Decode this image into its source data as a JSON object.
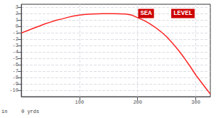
{
  "chart_data": {
    "type": "line",
    "x": [
      0,
      10,
      20,
      30,
      40,
      50,
      60,
      70,
      80,
      90,
      100,
      110,
      120,
      130,
      140,
      150,
      160,
      170,
      180,
      190,
      200,
      210,
      220,
      230,
      240,
      250,
      260,
      270,
      280,
      290,
      300,
      310,
      320,
      325
    ],
    "values": [
      -1.0,
      -0.65,
      -0.3,
      0.05,
      0.4,
      0.7,
      1.0,
      1.2,
      1.45,
      1.65,
      1.8,
      1.9,
      1.97,
      2.0,
      2.02,
      2.03,
      2.02,
      2.0,
      1.97,
      1.8,
      1.4,
      1.0,
      0.5,
      -0.1,
      -0.8,
      -1.6,
      -2.6,
      -3.7,
      -4.9,
      -6.2,
      -7.6,
      -8.8,
      -10.0,
      -10.6
    ],
    "color": "#ff2222",
    "xlim": [
      0,
      325
    ],
    "ylim": [
      -11,
      3.5
    ],
    "xticks": [
      100,
      200,
      300
    ],
    "yticks": [
      3,
      2,
      1,
      0,
      -1,
      -2,
      -3,
      -4,
      -5,
      -6,
      -7,
      -8,
      -9,
      -10
    ],
    "grid": true,
    "annotations": [
      {
        "text": "0 yrds"
      },
      {
        "text": "in"
      },
      {
        "text": "SEA",
        "color": "#cc0000"
      },
      {
        "text": "LEVEL",
        "color": "#cc0000"
      }
    ]
  }
}
